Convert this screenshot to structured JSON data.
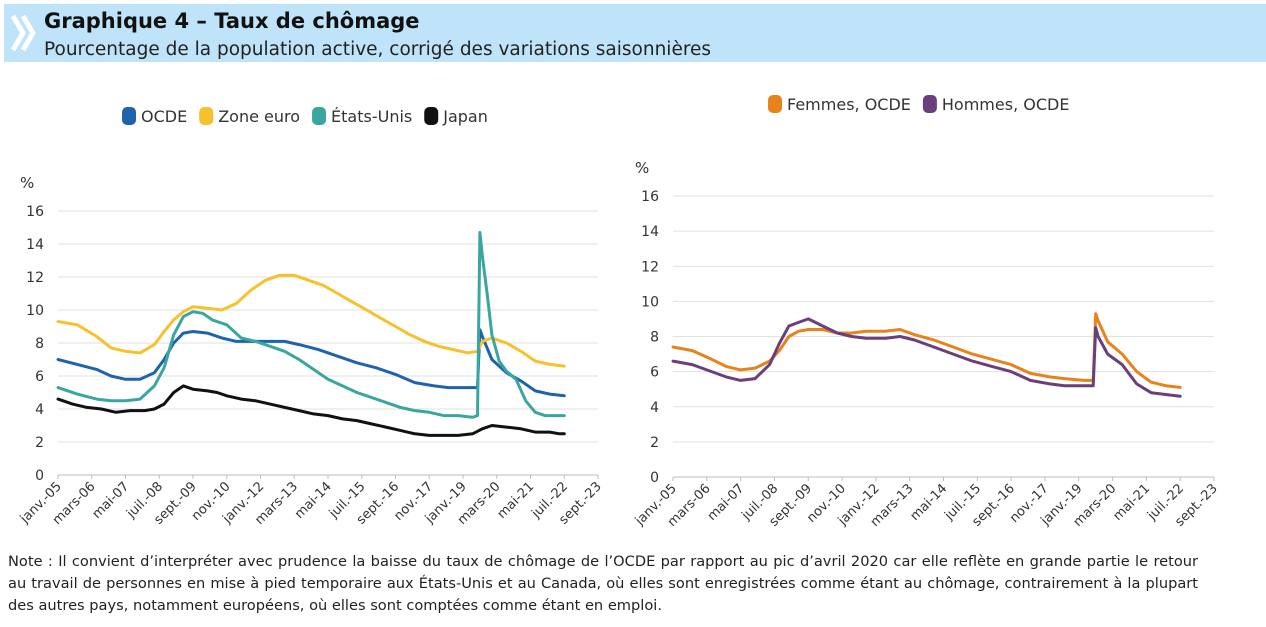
{
  "header": {
    "title": "Graphique 4 – Taux de chômage",
    "subtitle": "Pourcentage de la population active, corrigé des variations saisonnières"
  },
  "note": "Note : Il convient d’interpréter avec prudence la baisse du taux de chômage de l’OCDE par rapport au pic d’avril 2020 car elle reflète en grande partie le retour au travail de personnes en mise à pied temporaire aux États-Unis et au Canada, où elles sont enregistrées comme étant au chômage, contrairement à la plupart des autres pays, notamment européens, où elles sont comptées comme étant en emploi.",
  "chart_data": [
    {
      "type": "line",
      "ylabel": "%",
      "ylim": [
        0,
        16
      ],
      "yticks": [
        0,
        2,
        4,
        6,
        8,
        10,
        12,
        14,
        16
      ],
      "xtick_labels": [
        "janv.-05",
        "mars-06",
        "mai-07",
        "juil.-08",
        "sept.-09",
        "nov.-10",
        "janv.-12",
        "mars-13",
        "mai-14",
        "juil.-15",
        "sept.-16",
        "nov.-17",
        "janv.-19",
        "mars-20",
        "mai-21",
        "juil.-22",
        "sept.-23"
      ],
      "legend_position": "top-center",
      "grid": "horizontal",
      "series": [
        {
          "name": "OCDE",
          "color": "#1f63ad",
          "points": [
            [
              0,
              7.0
            ],
            [
              8,
              6.7
            ],
            [
              16,
              6.4
            ],
            [
              22,
              6.0
            ],
            [
              28,
              5.8
            ],
            [
              34,
              5.8
            ],
            [
              40,
              6.2
            ],
            [
              44,
              7.0
            ],
            [
              48,
              8.0
            ],
            [
              52,
              8.6
            ],
            [
              56,
              8.7
            ],
            [
              62,
              8.6
            ],
            [
              68,
              8.3
            ],
            [
              74,
              8.1
            ],
            [
              80,
              8.1
            ],
            [
              88,
              8.1
            ],
            [
              94,
              8.1
            ],
            [
              100,
              7.9
            ],
            [
              108,
              7.6
            ],
            [
              116,
              7.2
            ],
            [
              124,
              6.8
            ],
            [
              132,
              6.5
            ],
            [
              140,
              6.1
            ],
            [
              148,
              5.6
            ],
            [
              156,
              5.4
            ],
            [
              162,
              5.3
            ],
            [
              170,
              5.3
            ],
            [
              174,
              5.3
            ],
            [
              175,
              8.8
            ],
            [
              176,
              8.4
            ],
            [
              180,
              7.0
            ],
            [
              186,
              6.2
            ],
            [
              192,
              5.7
            ],
            [
              198,
              5.1
            ],
            [
              204,
              4.9
            ],
            [
              210,
              4.8
            ]
          ]
        },
        {
          "name": "Zone euro",
          "color": "#f7c12b",
          "points": [
            [
              0,
              9.3
            ],
            [
              8,
              9.1
            ],
            [
              16,
              8.4
            ],
            [
              22,
              7.7
            ],
            [
              28,
              7.5
            ],
            [
              34,
              7.4
            ],
            [
              40,
              7.9
            ],
            [
              44,
              8.7
            ],
            [
              48,
              9.4
            ],
            [
              52,
              9.9
            ],
            [
              56,
              10.2
            ],
            [
              62,
              10.1
            ],
            [
              68,
              10.0
            ],
            [
              74,
              10.4
            ],
            [
              80,
              11.2
            ],
            [
              86,
              11.8
            ],
            [
              92,
              12.1
            ],
            [
              98,
              12.1
            ],
            [
              104,
              11.8
            ],
            [
              110,
              11.5
            ],
            [
              116,
              11.0
            ],
            [
              122,
              10.5
            ],
            [
              128,
              10.0
            ],
            [
              134,
              9.5
            ],
            [
              140,
              9.0
            ],
            [
              146,
              8.5
            ],
            [
              152,
              8.1
            ],
            [
              158,
              7.8
            ],
            [
              164,
              7.6
            ],
            [
              170,
              7.4
            ],
            [
              174,
              7.5
            ],
            [
              176,
              8.1
            ],
            [
              180,
              8.3
            ],
            [
              186,
              8.0
            ],
            [
              192,
              7.5
            ],
            [
              198,
              6.9
            ],
            [
              204,
              6.7
            ],
            [
              210,
              6.6
            ]
          ]
        },
        {
          "name": "États-Unis",
          "color": "#3aa79f",
          "points": [
            [
              0,
              5.3
            ],
            [
              8,
              4.9
            ],
            [
              16,
              4.6
            ],
            [
              22,
              4.5
            ],
            [
              28,
              4.5
            ],
            [
              34,
              4.6
            ],
            [
              40,
              5.4
            ],
            [
              44,
              6.5
            ],
            [
              48,
              8.5
            ],
            [
              52,
              9.6
            ],
            [
              56,
              9.9
            ],
            [
              60,
              9.8
            ],
            [
              64,
              9.4
            ],
            [
              70,
              9.1
            ],
            [
              76,
              8.3
            ],
            [
              82,
              8.1
            ],
            [
              88,
              7.8
            ],
            [
              94,
              7.5
            ],
            [
              100,
              7.0
            ],
            [
              106,
              6.4
            ],
            [
              112,
              5.8
            ],
            [
              118,
              5.4
            ],
            [
              124,
              5.0
            ],
            [
              130,
              4.7
            ],
            [
              136,
              4.4
            ],
            [
              142,
              4.1
            ],
            [
              148,
              3.9
            ],
            [
              154,
              3.8
            ],
            [
              160,
              3.6
            ],
            [
              166,
              3.6
            ],
            [
              172,
              3.5
            ],
            [
              174,
              3.6
            ],
            [
              175,
              14.7
            ],
            [
              176,
              13.3
            ],
            [
              178,
              11.0
            ],
            [
              180,
              8.5
            ],
            [
              183,
              6.9
            ],
            [
              186,
              6.3
            ],
            [
              190,
              5.8
            ],
            [
              194,
              4.5
            ],
            [
              198,
              3.8
            ],
            [
              202,
              3.6
            ],
            [
              206,
              3.6
            ],
            [
              210,
              3.6
            ]
          ]
        },
        {
          "name": "Japan",
          "color": "#111111",
          "points": [
            [
              0,
              4.6
            ],
            [
              6,
              4.3
            ],
            [
              12,
              4.1
            ],
            [
              18,
              4.0
            ],
            [
              24,
              3.8
            ],
            [
              30,
              3.9
            ],
            [
              36,
              3.9
            ],
            [
              40,
              4.0
            ],
            [
              44,
              4.3
            ],
            [
              48,
              5.0
            ],
            [
              52,
              5.4
            ],
            [
              56,
              5.2
            ],
            [
              62,
              5.1
            ],
            [
              66,
              5.0
            ],
            [
              70,
              4.8
            ],
            [
              76,
              4.6
            ],
            [
              82,
              4.5
            ],
            [
              88,
              4.3
            ],
            [
              94,
              4.1
            ],
            [
              100,
              3.9
            ],
            [
              106,
              3.7
            ],
            [
              112,
              3.6
            ],
            [
              118,
              3.4
            ],
            [
              124,
              3.3
            ],
            [
              130,
              3.1
            ],
            [
              136,
              2.9
            ],
            [
              142,
              2.7
            ],
            [
              148,
              2.5
            ],
            [
              154,
              2.4
            ],
            [
              160,
              2.4
            ],
            [
              166,
              2.4
            ],
            [
              172,
              2.5
            ],
            [
              176,
              2.8
            ],
            [
              180,
              3.0
            ],
            [
              186,
              2.9
            ],
            [
              192,
              2.8
            ],
            [
              198,
              2.6
            ],
            [
              204,
              2.6
            ],
            [
              208,
              2.5
            ],
            [
              210,
              2.5
            ]
          ]
        }
      ]
    },
    {
      "type": "line",
      "ylabel": "%",
      "ylim": [
        0,
        16
      ],
      "yticks": [
        0,
        2,
        4,
        6,
        8,
        10,
        12,
        14,
        16
      ],
      "xtick_labels": [
        "janv.-05",
        "mars-06",
        "mai-07",
        "juil.-08",
        "sept.-09",
        "nov.-10",
        "janv.-12",
        "mars-13",
        "mai-14",
        "juil.-15",
        "sept.-16",
        "nov.-17",
        "janv.-19",
        "mars-20",
        "mai-21",
        "juil.-22",
        "sept.-23"
      ],
      "legend_position": "top-center",
      "grid": "horizontal",
      "series": [
        {
          "name": "Femmes, OCDE",
          "color": "#e8821a",
          "points": [
            [
              0,
              7.4
            ],
            [
              8,
              7.2
            ],
            [
              16,
              6.7
            ],
            [
              22,
              6.3
            ],
            [
              28,
              6.1
            ],
            [
              34,
              6.2
            ],
            [
              40,
              6.6
            ],
            [
              44,
              7.2
            ],
            [
              48,
              8.0
            ],
            [
              52,
              8.3
            ],
            [
              56,
              8.4
            ],
            [
              62,
              8.4
            ],
            [
              68,
              8.2
            ],
            [
              74,
              8.2
            ],
            [
              80,
              8.3
            ],
            [
              88,
              8.3
            ],
            [
              94,
              8.4
            ],
            [
              100,
              8.1
            ],
            [
              108,
              7.8
            ],
            [
              116,
              7.4
            ],
            [
              124,
              7.0
            ],
            [
              132,
              6.7
            ],
            [
              140,
              6.4
            ],
            [
              148,
              5.9
            ],
            [
              156,
              5.7
            ],
            [
              162,
              5.6
            ],
            [
              170,
              5.5
            ],
            [
              174,
              5.5
            ],
            [
              175,
              9.3
            ],
            [
              176,
              8.9
            ],
            [
              180,
              7.7
            ],
            [
              186,
              7.0
            ],
            [
              192,
              6.0
            ],
            [
              198,
              5.4
            ],
            [
              204,
              5.2
            ],
            [
              210,
              5.1
            ]
          ]
        },
        {
          "name": "Hommes, OCDE",
          "color": "#6a3f7c",
          "points": [
            [
              0,
              6.6
            ],
            [
              8,
              6.4
            ],
            [
              16,
              6.0
            ],
            [
              22,
              5.7
            ],
            [
              28,
              5.5
            ],
            [
              34,
              5.6
            ],
            [
              40,
              6.4
            ],
            [
              44,
              7.6
            ],
            [
              48,
              8.6
            ],
            [
              52,
              8.8
            ],
            [
              56,
              9.0
            ],
            [
              62,
              8.6
            ],
            [
              68,
              8.2
            ],
            [
              74,
              8.0
            ],
            [
              80,
              7.9
            ],
            [
              88,
              7.9
            ],
            [
              94,
              8.0
            ],
            [
              100,
              7.8
            ],
            [
              108,
              7.4
            ],
            [
              116,
              7.0
            ],
            [
              124,
              6.6
            ],
            [
              132,
              6.3
            ],
            [
              140,
              6.0
            ],
            [
              148,
              5.5
            ],
            [
              156,
              5.3
            ],
            [
              162,
              5.2
            ],
            [
              170,
              5.2
            ],
            [
              174,
              5.2
            ],
            [
              175,
              8.5
            ],
            [
              176,
              8.0
            ],
            [
              180,
              7.0
            ],
            [
              186,
              6.4
            ],
            [
              192,
              5.3
            ],
            [
              198,
              4.8
            ],
            [
              204,
              4.7
            ],
            [
              210,
              4.6
            ]
          ]
        }
      ]
    }
  ]
}
